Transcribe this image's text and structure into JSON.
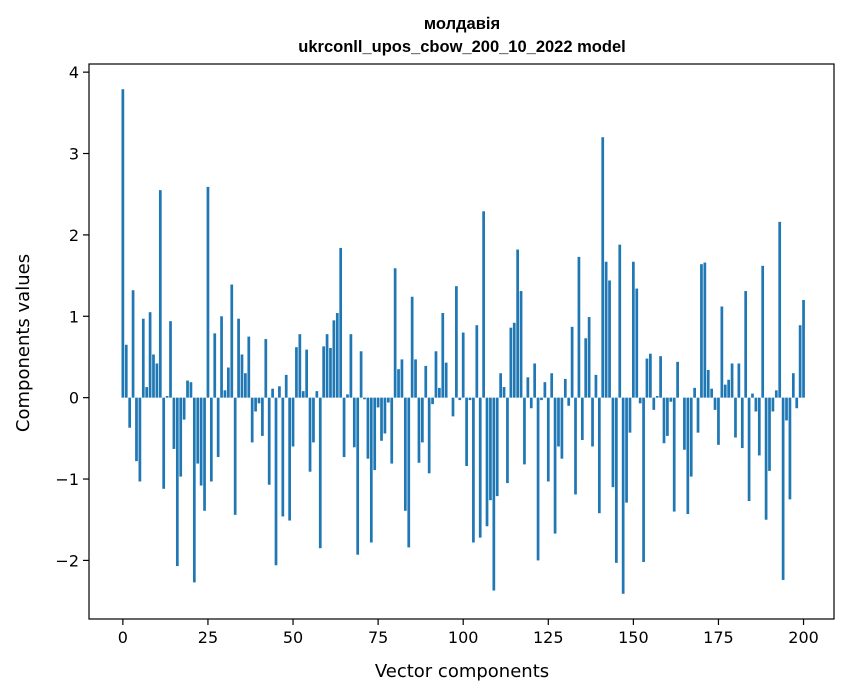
{
  "chart_data": {
    "type": "bar",
    "title_line1": "молдавія",
    "title_line2": "ukrconll_upos_cbow_200_10_2022 model",
    "xlabel": "Vector components",
    "ylabel": "Components values",
    "xlim": [
      -9.95,
      208.95
    ],
    "ylim": [
      -2.72,
      4.1
    ],
    "xticks": [
      0,
      25,
      50,
      75,
      100,
      125,
      150,
      175,
      200
    ],
    "yticks": [
      -2,
      -1,
      0,
      1,
      2,
      3,
      4
    ],
    "xtick_labels": [
      "0",
      "25",
      "50",
      "75",
      "100",
      "125",
      "150",
      "175",
      "200"
    ],
    "ytick_labels": [
      "−2",
      "−1",
      "0",
      "1",
      "2",
      "3",
      "4"
    ],
    "bar_color": "#1f77b4",
    "grid": false,
    "legend": false,
    "values": [
      3.79,
      0.65,
      -0.37,
      1.32,
      -0.78,
      -1.03,
      0.97,
      0.13,
      1.05,
      0.53,
      0.42,
      2.55,
      -1.12,
      0.02,
      0.94,
      -0.63,
      -2.07,
      -0.97,
      -0.27,
      0.21,
      0.19,
      -2.27,
      -0.81,
      -1.08,
      -1.39,
      2.59,
      -1.03,
      0.79,
      -0.73,
      1.0,
      0.09,
      0.37,
      1.39,
      -1.44,
      0.97,
      0.53,
      0.3,
      0.75,
      -0.55,
      -0.17,
      -0.07,
      -0.47,
      0.72,
      -1.07,
      0.11,
      -2.06,
      0.14,
      -1.46,
      0.28,
      -1.51,
      -0.6,
      0.62,
      0.78,
      0.08,
      0.59,
      -0.91,
      -0.55,
      0.08,
      -1.85,
      0.63,
      0.78,
      0.61,
      0.95,
      1.04,
      1.84,
      -0.73,
      0.04,
      0.78,
      -0.61,
      -1.93,
      0.57,
      -0.02,
      -0.75,
      -1.78,
      -0.89,
      -0.12,
      -0.53,
      -0.44,
      -0.06,
      -0.81,
      1.59,
      0.35,
      0.47,
      -1.39,
      -1.84,
      1.24,
      0.47,
      -0.8,
      -0.55,
      0.39,
      -0.93,
      -0.08,
      0.57,
      0.12,
      1.04,
      0.43,
      0.0,
      -0.23,
      1.37,
      -0.03,
      0.8,
      -0.84,
      -0.03,
      -1.78,
      0.89,
      -1.72,
      2.29,
      -1.58,
      -1.26,
      -2.37,
      -1.21,
      0.3,
      0.13,
      -1.05,
      0.86,
      0.92,
      1.82,
      1.31,
      -0.82,
      0.25,
      -0.13,
      0.42,
      -2.0,
      -0.03,
      0.19,
      -1.03,
      0.3,
      -1.67,
      -0.6,
      -0.75,
      0.23,
      -0.1,
      0.87,
      -1.19,
      1.73,
      -0.52,
      0.73,
      0.99,
      -0.6,
      0.28,
      -1.42,
      3.2,
      1.67,
      1.44,
      -1.1,
      -2.03,
      1.88,
      -2.41,
      -1.29,
      -0.43,
      1.67,
      1.34,
      -0.07,
      -2.02,
      0.48,
      0.54,
      -0.15,
      0.02,
      0.51,
      -0.56,
      -0.47,
      -0.05,
      -1.4,
      0.44,
      0.0,
      -0.64,
      -1.43,
      -0.97,
      0.12,
      -0.43,
      1.64,
      1.66,
      0.34,
      0.11,
      -0.15,
      -0.58,
      1.12,
      0.16,
      0.22,
      0.42,
      -0.49,
      0.42,
      -0.62,
      1.31,
      -1.27,
      0.05,
      -0.17,
      -0.71,
      1.62,
      -1.5,
      -0.9,
      -0.17,
      0.09,
      2.16,
      -2.24,
      -0.28,
      -1.25,
      0.3,
      -0.13,
      0.89,
      1.2
    ]
  }
}
